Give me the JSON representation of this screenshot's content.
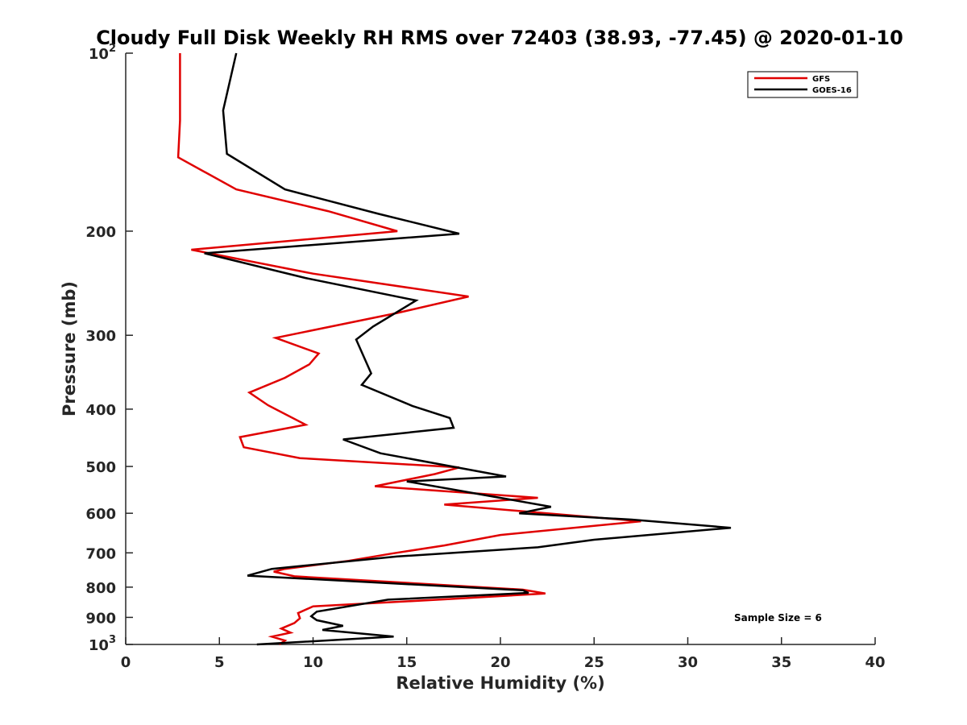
{
  "chart_data": {
    "type": "line",
    "title": "Cloudy Full Disk Weekly RH RMS over 72403 (38.93, -77.45) @ 2020-01-10",
    "xlabel": "Relative Humidity (%)",
    "ylabel": "Pressure (mb)",
    "xlim": [
      0,
      40
    ],
    "ylim": [
      100,
      1000
    ],
    "y_scale": "log",
    "y_reversed": true,
    "grid": false,
    "legend_position": "top-right",
    "x_ticks": [
      "0",
      "5",
      "10",
      "15",
      "20",
      "25",
      "30",
      "35",
      "40"
    ],
    "x_tick_values": [
      0,
      5,
      10,
      15,
      20,
      25,
      30,
      35,
      40
    ],
    "y_ticks": [
      {
        "value": 100,
        "base": "10",
        "exp": "2"
      },
      {
        "value": 200,
        "label": "200"
      },
      {
        "value": 300,
        "label": "300"
      },
      {
        "value": 400,
        "label": "400"
      },
      {
        "value": 500,
        "label": "500"
      },
      {
        "value": 600,
        "label": "600"
      },
      {
        "value": 700,
        "label": "700"
      },
      {
        "value": 800,
        "label": "800"
      },
      {
        "value": 900,
        "label": "900"
      },
      {
        "value": 1000,
        "base": "10",
        "exp": "3"
      }
    ],
    "series": [
      {
        "name": "GFS",
        "color": "#e00000",
        "points": [
          [
            2.9,
            100
          ],
          [
            2.9,
            130
          ],
          [
            2.8,
            150
          ],
          [
            5.9,
            170
          ],
          [
            10.8,
            185
          ],
          [
            14.5,
            200
          ],
          [
            3.5,
            215
          ],
          [
            10.0,
            236
          ],
          [
            18.3,
            258
          ],
          [
            14.5,
            275
          ],
          [
            8.0,
            303
          ],
          [
            10.3,
            322
          ],
          [
            9.8,
            336
          ],
          [
            8.5,
            354
          ],
          [
            6.6,
            375
          ],
          [
            7.6,
            394
          ],
          [
            9.6,
            425
          ],
          [
            6.1,
            446
          ],
          [
            6.3,
            464
          ],
          [
            9.3,
            484
          ],
          [
            17.8,
            502
          ],
          [
            16.5,
            515
          ],
          [
            13.3,
            540
          ],
          [
            22.0,
            565
          ],
          [
            17.0,
            580
          ],
          [
            27.5,
            619
          ],
          [
            20.0,
            653
          ],
          [
            17.0,
            680
          ],
          [
            14.2,
            702
          ],
          [
            11.9,
            722
          ],
          [
            8.5,
            745
          ],
          [
            7.9,
            753
          ],
          [
            9.0,
            767
          ],
          [
            21.2,
            808
          ],
          [
            22.4,
            820
          ],
          [
            17.0,
            839
          ],
          [
            10.0,
            862
          ],
          [
            9.2,
            885
          ],
          [
            9.3,
            903
          ],
          [
            9.0,
            920
          ],
          [
            8.3,
            940
          ],
          [
            8.8,
            955
          ],
          [
            7.8,
            970
          ],
          [
            8.5,
            985
          ],
          [
            8.2,
            1000
          ]
        ]
      },
      {
        "name": "GOES-16",
        "color": "#000000",
        "points": [
          [
            5.9,
            100
          ],
          [
            5.2,
            125
          ],
          [
            5.4,
            148
          ],
          [
            8.5,
            170
          ],
          [
            13.5,
            187
          ],
          [
            17.8,
            202
          ],
          [
            4.2,
            218
          ],
          [
            9.6,
            240
          ],
          [
            15.5,
            262
          ],
          [
            13.2,
            290
          ],
          [
            12.3,
            305
          ],
          [
            13.1,
            348
          ],
          [
            12.6,
            364
          ],
          [
            15.3,
            395
          ],
          [
            17.3,
            414
          ],
          [
            17.5,
            430
          ],
          [
            11.6,
            450
          ],
          [
            13.6,
            475
          ],
          [
            20.3,
            520
          ],
          [
            15.0,
            530
          ],
          [
            22.7,
            585
          ],
          [
            21.0,
            600
          ],
          [
            27.0,
            615
          ],
          [
            32.3,
            635
          ],
          [
            25.0,
            665
          ],
          [
            22.0,
            685
          ],
          [
            14.5,
            710
          ],
          [
            7.8,
            745
          ],
          [
            6.5,
            765
          ],
          [
            21.2,
            810
          ],
          [
            21.5,
            818
          ],
          [
            14.0,
            840
          ],
          [
            10.2,
            880
          ],
          [
            9.9,
            896
          ],
          [
            10.2,
            910
          ],
          [
            11.6,
            930
          ],
          [
            10.5,
            945
          ],
          [
            14.3,
            970
          ],
          [
            7.0,
            1000
          ]
        ]
      }
    ],
    "annotations": [
      "Sample Size = 6"
    ]
  }
}
